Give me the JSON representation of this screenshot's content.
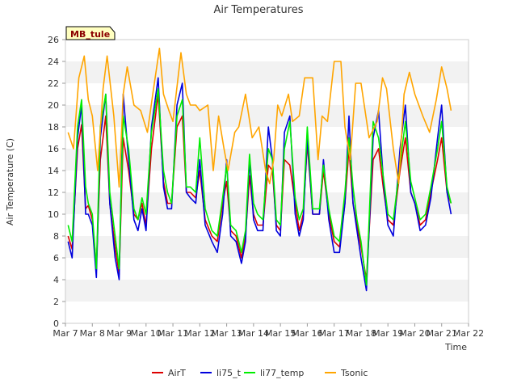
{
  "chart_data": {
    "type": "line",
    "title": "Air Temperatures",
    "xlabel": "Time",
    "ylabel": "Air Temperature (C)",
    "badge": "MB_tule",
    "xlim": [
      "Mar 7",
      "Mar 22"
    ],
    "ylim": [
      0,
      26
    ],
    "yticks": [
      0,
      2,
      4,
      6,
      8,
      10,
      12,
      14,
      16,
      18,
      20,
      22,
      24,
      26
    ],
    "xtick_labels": [
      "Mar 7",
      "Mar 8",
      "Mar 9",
      "Mar 10",
      "Mar 11",
      "Mar 12",
      "Mar 13",
      "Mar 14",
      "Mar 15",
      "Mar 16",
      "Mar 17",
      "Mar 18",
      "Mar 19",
      "Mar 20",
      "Mar 21",
      "Mar 22"
    ],
    "x_unit": "day of March",
    "grid": "horizontal bands",
    "legend_position": "bottom",
    "series": [
      {
        "name": "AirT",
        "color": "#dd0000",
        "x": [
          7.1,
          7.25,
          7.45,
          7.6,
          7.75,
          7.85,
          8.0,
          8.15,
          8.3,
          8.5,
          8.65,
          8.85,
          9.0,
          9.15,
          9.35,
          9.55,
          9.7,
          9.85,
          10.0,
          10.2,
          10.45,
          10.65,
          10.8,
          10.95,
          11.15,
          11.35,
          11.5,
          11.65,
          11.85,
          12.0,
          12.2,
          12.45,
          12.65,
          12.85,
          13.0,
          13.15,
          13.35,
          13.55,
          13.7,
          13.85,
          14.0,
          14.15,
          14.35,
          14.55,
          14.7,
          14.85,
          15.0,
          15.15,
          15.35,
          15.55,
          15.7,
          15.85,
          16.0,
          16.2,
          16.45,
          16.6,
          16.8,
          17.0,
          17.2,
          17.4,
          17.55,
          17.7,
          17.85,
          18.0,
          18.2,
          18.45,
          18.65,
          18.85,
          19.0,
          19.2,
          19.45,
          19.65,
          19.85,
          20.0,
          20.2,
          20.4,
          20.6,
          20.85,
          21.0,
          21.2,
          21.35
        ],
        "values": [
          8.0,
          6.8,
          16.0,
          18.2,
          10.5,
          10.8,
          9.5,
          5.2,
          15.0,
          19.0,
          11.0,
          7.0,
          4.5,
          17.0,
          14.0,
          10.0,
          9.5,
          11.0,
          9.0,
          16.0,
          21.0,
          13.0,
          11.0,
          11.0,
          18.0,
          19.0,
          12.0,
          12.0,
          11.5,
          14.0,
          9.5,
          8.0,
          7.5,
          11.0,
          13.0,
          8.5,
          8.0,
          6.0,
          8.0,
          13.5,
          10.0,
          9.0,
          9.0,
          14.5,
          14.0,
          9.0,
          8.5,
          15.0,
          14.5,
          11.0,
          8.5,
          10.0,
          16.5,
          10.0,
          10.0,
          14.0,
          10.0,
          7.5,
          7.0,
          11.0,
          16.0,
          11.0,
          9.0,
          7.0,
          4.0,
          15.0,
          16.0,
          12.0,
          9.5,
          9.0,
          14.0,
          17.0,
          12.0,
          11.0,
          9.0,
          9.5,
          12.0,
          15.0,
          17.0,
          12.0,
          11.0
        ]
      },
      {
        "name": "li75_t",
        "color": "#0000dd",
        "x": [
          7.1,
          7.25,
          7.45,
          7.6,
          7.75,
          7.85,
          8.0,
          8.15,
          8.3,
          8.5,
          8.65,
          8.85,
          9.0,
          9.15,
          9.35,
          9.55,
          9.7,
          9.85,
          10.0,
          10.2,
          10.45,
          10.65,
          10.8,
          10.95,
          11.15,
          11.35,
          11.5,
          11.65,
          11.85,
          12.0,
          12.2,
          12.45,
          12.65,
          12.85,
          13.0,
          13.15,
          13.35,
          13.55,
          13.7,
          13.85,
          14.0,
          14.15,
          14.35,
          14.55,
          14.7,
          14.85,
          15.0,
          15.15,
          15.35,
          15.55,
          15.7,
          15.85,
          16.0,
          16.2,
          16.45,
          16.6,
          16.8,
          17.0,
          17.2,
          17.4,
          17.55,
          17.7,
          17.85,
          18.0,
          18.2,
          18.45,
          18.65,
          18.85,
          19.0,
          19.2,
          19.45,
          19.65,
          19.85,
          20.0,
          20.2,
          20.4,
          20.6,
          20.85,
          21.0,
          21.2,
          21.35
        ],
        "values": [
          7.5,
          6.0,
          17.0,
          20.0,
          10.0,
          10.0,
          9.0,
          4.2,
          17.0,
          21.0,
          11.0,
          6.0,
          4.0,
          21.0,
          15.0,
          9.5,
          8.5,
          10.5,
          8.5,
          18.0,
          22.5,
          12.5,
          10.5,
          10.5,
          20.0,
          22.0,
          12.0,
          11.5,
          11.0,
          15.0,
          9.0,
          7.5,
          6.5,
          10.0,
          15.0,
          8.0,
          7.5,
          5.5,
          7.5,
          15.0,
          9.5,
          8.5,
          8.5,
          18.0,
          15.0,
          8.5,
          8.0,
          17.5,
          19.0,
          10.0,
          8.0,
          9.5,
          17.0,
          10.0,
          10.0,
          15.0,
          9.5,
          6.5,
          6.5,
          11.0,
          19.0,
          11.0,
          8.5,
          6.0,
          3.0,
          17.0,
          19.5,
          12.5,
          9.0,
          8.0,
          16.0,
          20.0,
          12.0,
          11.0,
          8.5,
          9.0,
          11.5,
          17.0,
          20.0,
          12.0,
          10.0
        ]
      },
      {
        "name": "li77_temp",
        "color": "#00ee00",
        "x": [
          7.1,
          7.25,
          7.45,
          7.6,
          7.75,
          7.85,
          8.0,
          8.15,
          8.3,
          8.5,
          8.65,
          8.85,
          9.0,
          9.15,
          9.35,
          9.55,
          9.7,
          9.85,
          10.0,
          10.2,
          10.45,
          10.65,
          10.8,
          10.95,
          11.15,
          11.35,
          11.5,
          11.65,
          11.85,
          12.0,
          12.2,
          12.45,
          12.65,
          12.85,
          13.0,
          13.15,
          13.35,
          13.55,
          13.7,
          13.85,
          14.0,
          14.15,
          14.35,
          14.55,
          14.7,
          14.85,
          15.0,
          15.15,
          15.35,
          15.55,
          15.7,
          15.85,
          16.0,
          16.2,
          16.45,
          16.6,
          16.8,
          17.0,
          17.2,
          17.4,
          17.55,
          17.7,
          17.85,
          18.0,
          18.2,
          18.45,
          18.65,
          18.85,
          19.0,
          19.2,
          19.45,
          19.65,
          19.85,
          20.0,
          20.2,
          20.4,
          20.6,
          20.85,
          21.0,
          21.2,
          21.35
        ],
        "values": [
          9.0,
          7.5,
          18.0,
          20.5,
          12.5,
          11.0,
          10.0,
          5.0,
          18.0,
          21.0,
          12.0,
          8.0,
          5.0,
          19.0,
          16.0,
          10.5,
          9.5,
          11.5,
          10.0,
          17.5,
          21.5,
          14.0,
          12.0,
          11.0,
          19.0,
          20.5,
          12.5,
          12.5,
          12.0,
          17.0,
          10.5,
          8.5,
          8.0,
          11.5,
          14.5,
          9.0,
          8.5,
          6.5,
          8.5,
          15.5,
          11.0,
          10.0,
          9.5,
          16.0,
          15.0,
          9.5,
          9.0,
          16.0,
          18.5,
          11.5,
          9.5,
          10.5,
          18.0,
          10.5,
          10.5,
          14.5,
          10.5,
          8.0,
          7.5,
          12.0,
          17.0,
          12.5,
          9.5,
          7.5,
          3.5,
          18.5,
          17.0,
          13.0,
          10.0,
          9.5,
          14.5,
          18.5,
          13.0,
          11.5,
          9.5,
          10.0,
          12.5,
          16.0,
          18.5,
          12.5,
          11.0
        ]
      },
      {
        "name": "Tsonic",
        "color": "#ffa500",
        "x": [
          7.1,
          7.3,
          7.5,
          7.7,
          7.85,
          8.0,
          8.2,
          8.4,
          8.55,
          8.8,
          9.0,
          9.15,
          9.3,
          9.55,
          9.8,
          10.05,
          10.25,
          10.5,
          10.65,
          10.85,
          11.0,
          11.3,
          11.5,
          11.65,
          11.85,
          12.0,
          12.3,
          12.5,
          12.7,
          12.9,
          13.05,
          13.3,
          13.45,
          13.7,
          13.95,
          14.2,
          14.45,
          14.6,
          14.75,
          14.9,
          15.05,
          15.3,
          15.45,
          15.7,
          15.9,
          16.2,
          16.4,
          16.55,
          16.75,
          17.0,
          17.25,
          17.4,
          17.6,
          17.8,
          18.0,
          18.3,
          18.6,
          18.8,
          18.95,
          19.2,
          19.4,
          19.6,
          19.8,
          20.0,
          20.3,
          20.55,
          20.8,
          21.0,
          21.2,
          21.35
        ],
        "values": [
          17.5,
          16.0,
          22.5,
          24.5,
          20.5,
          19.0,
          14.0,
          21.5,
          24.5,
          19.0,
          12.5,
          21.0,
          23.5,
          20.0,
          19.5,
          17.5,
          21.0,
          25.2,
          21.0,
          19.5,
          18.5,
          24.8,
          21.0,
          20.0,
          20.0,
          19.5,
          20.0,
          14.0,
          19.0,
          16.0,
          14.0,
          17.5,
          18.0,
          21.0,
          17.0,
          18.0,
          14.0,
          12.8,
          15.0,
          20.0,
          19.0,
          21.0,
          18.5,
          19.0,
          22.5,
          22.5,
          15.0,
          19.0,
          18.5,
          24.0,
          24.0,
          18.0,
          15.0,
          22.0,
          22.0,
          17.0,
          18.5,
          22.5,
          21.5,
          16.0,
          12.8,
          21.0,
          23.0,
          21.0,
          19.0,
          17.5,
          20.5,
          23.5,
          21.5,
          19.5
        ]
      }
    ]
  }
}
